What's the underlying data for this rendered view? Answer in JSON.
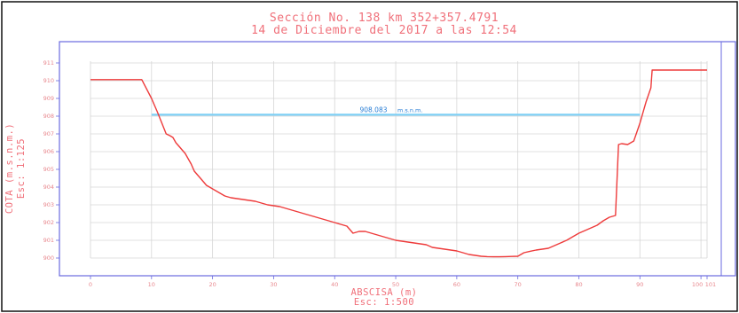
{
  "title_line1": "Sección No. 138 km 352+357.4791",
  "title_line2": "14 de Diciembre del 2017 a las 12:54",
  "colors": {
    "frame": "#6a6ae0",
    "grid": "#d6d6d6",
    "profile": "#ee3b3b",
    "water": "#7fd0f5",
    "text": "#f0707a"
  },
  "chart_data": {
    "type": "line",
    "title": "Sección No. 138 km 352+357.4791",
    "subtitle": "14 de Diciembre del 2017 a las 12:54",
    "xlabel": "ABSCISA (m)",
    "xscale_label": "Esc: 1:500",
    "ylabel": "COTA (m.s.n.m.)",
    "yscale_label": "Esc: 1:125",
    "xlim": [
      0,
      101
    ],
    "ylim": [
      900,
      911
    ],
    "grid": true,
    "x_ticks": [
      "0",
      "10",
      "20",
      "30",
      "40",
      "50",
      "60",
      "70",
      "80",
      "90",
      "100",
      "101"
    ],
    "y_ticks": [
      "900",
      "901",
      "902",
      "903",
      "904",
      "905",
      "906",
      "907",
      "908",
      "909",
      "910",
      "911"
    ],
    "water_level": {
      "value": "908.083",
      "unit": "m.s.n.m.",
      "y": 908.083,
      "x_range": [
        10,
        90
      ]
    },
    "series": [
      {
        "x": [
          0,
          8.4,
          10,
          11,
          12.4,
          13,
          13.5,
          14,
          14.5,
          15,
          15.5,
          16,
          16.5,
          17,
          17.5,
          18,
          18.5,
          19,
          19.5,
          20,
          21,
          22,
          23,
          24,
          25,
          26,
          27,
          28,
          29,
          30,
          31,
          32,
          33,
          34,
          35,
          36,
          37,
          38,
          39,
          40,
          41,
          42,
          43,
          44,
          45,
          46,
          47,
          48,
          49,
          50,
          51,
          52,
          53,
          54,
          55,
          56,
          57,
          58,
          59,
          60,
          61,
          62,
          63,
          64,
          65,
          66,
          67,
          68,
          69,
          70,
          71,
          72,
          73,
          74,
          75,
          76,
          77,
          78,
          79,
          80,
          81,
          82,
          83,
          84,
          85,
          86,
          86.5,
          87,
          88,
          89,
          90,
          91,
          91.8,
          92,
          92.3,
          93,
          101
        ],
        "y": [
          910.06,
          910.06,
          909.0,
          908.2,
          907.0,
          906.9,
          906.8,
          906.5,
          906.3,
          906.1,
          905.9,
          905.6,
          905.3,
          904.9,
          904.7,
          904.5,
          904.3,
          904.1,
          904.0,
          903.9,
          903.7,
          903.5,
          903.4,
          903.35,
          903.3,
          903.25,
          903.2,
          903.1,
          903.0,
          902.95,
          902.9,
          902.8,
          902.7,
          902.6,
          902.5,
          902.4,
          902.3,
          902.2,
          902.1,
          902.0,
          901.9,
          901.8,
          901.4,
          901.5,
          901.5,
          901.4,
          901.3,
          901.2,
          901.1,
          901.0,
          900.95,
          900.9,
          900.85,
          900.8,
          900.75,
          900.6,
          900.55,
          900.5,
          900.45,
          900.4,
          900.3,
          900.2,
          900.15,
          900.1,
          900.08,
          900.07,
          900.07,
          900.08,
          900.09,
          900.1,
          900.3,
          900.38,
          900.45,
          900.5,
          900.55,
          900.7,
          900.85,
          901.0,
          901.2,
          901.4,
          901.55,
          901.7,
          901.85,
          902.1,
          902.3,
          902.4,
          906.4,
          906.45,
          906.4,
          906.6,
          907.6,
          908.8,
          909.6,
          910.6,
          910.6,
          910.6,
          910.6
        ]
      }
    ]
  }
}
